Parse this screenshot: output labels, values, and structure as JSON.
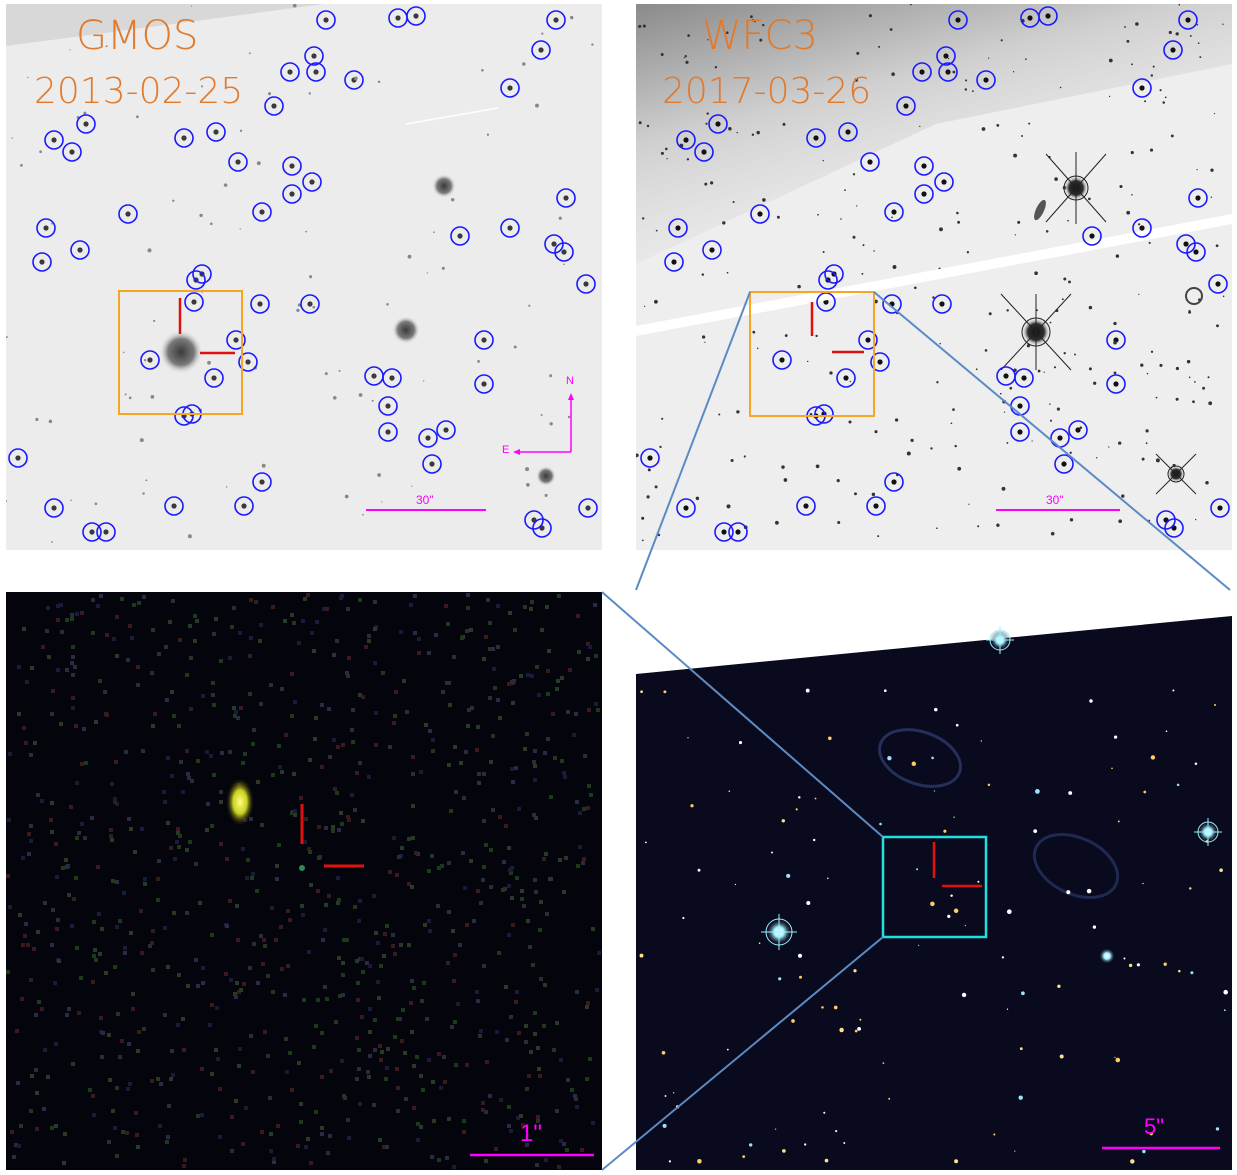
{
  "panels": {
    "gmos": {
      "instrument": "GMOS",
      "date": "2013-02-25",
      "scale_label": "30\"",
      "compass": {
        "north": "N",
        "east": "E"
      }
    },
    "wfc3": {
      "instrument": "WFC3",
      "date": "2017-03-26",
      "scale_label": "30\""
    },
    "zoom_transient": {
      "scale_label": "1\""
    },
    "zoom_field": {
      "scale_label": "5\""
    }
  },
  "colors": {
    "circle_markers": "#1a1aff",
    "crosshair": "#e01010",
    "gmos_box": "#f5a623",
    "zoom_box": "#20e0e0",
    "connector_lines": "#5b8bc4",
    "label_text": "#e07a2c",
    "scale_bar": "#ff00ff"
  }
}
